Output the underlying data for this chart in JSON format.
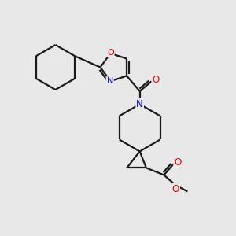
{
  "background_color": "#e8e8e8",
  "bond_color": "#1a1a1a",
  "O_color": "#ff0000",
  "N_color": "#0000cd",
  "linewidth": 1.6,
  "figsize": [
    3.0,
    3.0
  ],
  "dpi": 100,
  "xlim": [
    0,
    10
  ],
  "ylim": [
    0,
    10
  ]
}
